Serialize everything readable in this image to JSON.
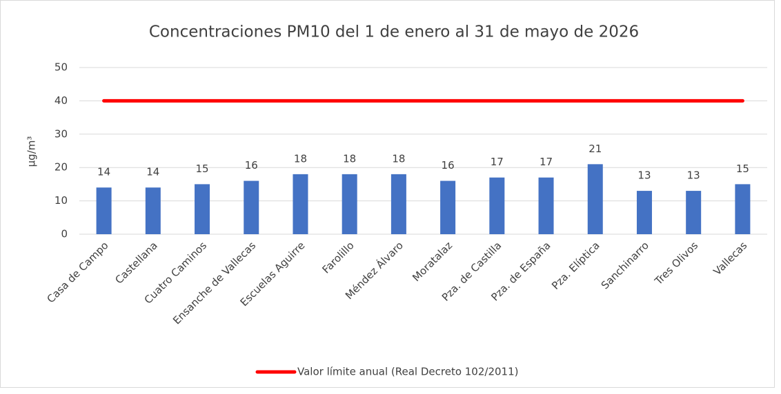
{
  "chart_data": {
    "type": "bar",
    "title": "Concentraciones PM10 del 1 de enero al 31 de mayo de 2026",
    "y_label": "µg/m³",
    "categories": [
      "Casa de Campo",
      "Castellana",
      "Cuatro Caminos",
      "Ensanche de Vallecas",
      "Escuelas Aguirre",
      "Farolillo",
      "Méndez Álvaro",
      "Moratalaz",
      "Pza. de Castilla",
      "Pza. de España",
      "Pza. Elíptica",
      "Sanchinarro",
      "Tres Olivos",
      "Vallecas"
    ],
    "series": [
      {
        "type": "bar",
        "color": "#4472c4",
        "values": [
          14,
          14,
          15,
          16,
          18,
          18,
          18,
          16,
          17,
          17,
          21,
          13,
          13,
          15
        ]
      },
      {
        "type": "line",
        "name": "Valor límite anual (Real Decreto 102/2011)",
        "color": "#ff0000",
        "values": [
          40,
          40,
          40,
          40,
          40,
          40,
          40,
          40,
          40,
          40,
          40,
          40,
          40,
          40
        ]
      }
    ],
    "ylim": [
      0,
      50
    ],
    "yticks": [
      0,
      10,
      20,
      30,
      40,
      50
    ],
    "grid": true,
    "legend": "bottom"
  }
}
